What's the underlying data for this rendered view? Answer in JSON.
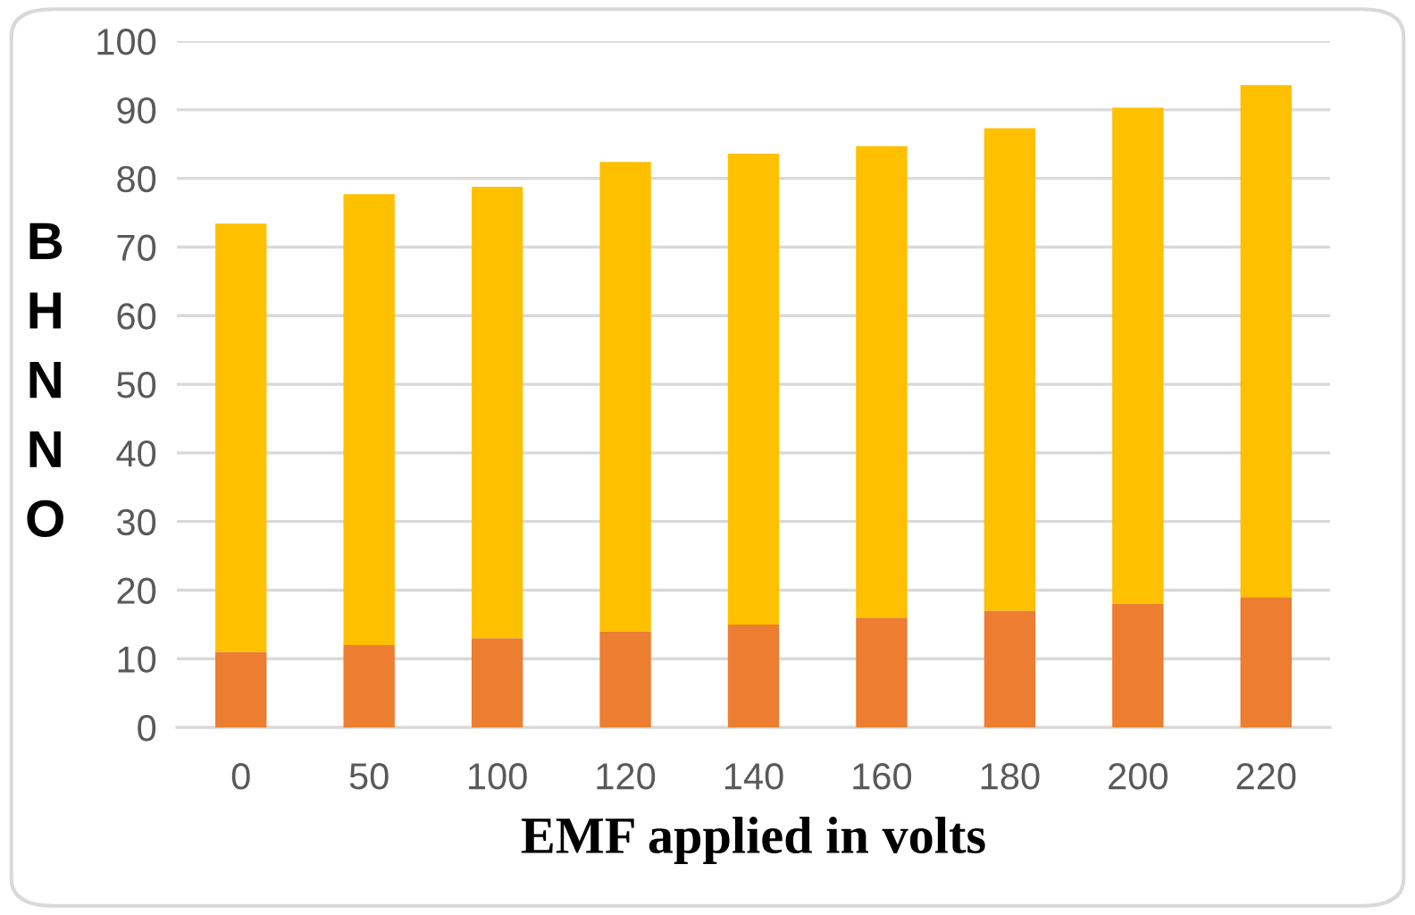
{
  "chart_data": {
    "type": "bar",
    "stacked": true,
    "xlabel": "EMF applied in volts",
    "ylabel": "BHNNO",
    "categories": [
      "0",
      "50",
      "100",
      "120",
      "140",
      "160",
      "180",
      "200",
      "220"
    ],
    "series": [
      {
        "color": "#ed7d31",
        "values": [
          11,
          12,
          13,
          14,
          15,
          16,
          17,
          18,
          19
        ]
      },
      {
        "color": "#ffc000",
        "values": [
          62.4,
          65.7,
          65.8,
          68.4,
          68.6,
          68.7,
          70.3,
          72.3,
          74.6
        ]
      }
    ],
    "ylim": [
      0,
      100
    ],
    "yticks": [
      0,
      10,
      20,
      30,
      40,
      50,
      60,
      70,
      80,
      90,
      100
    ],
    "grid": "y",
    "legend": false
  }
}
